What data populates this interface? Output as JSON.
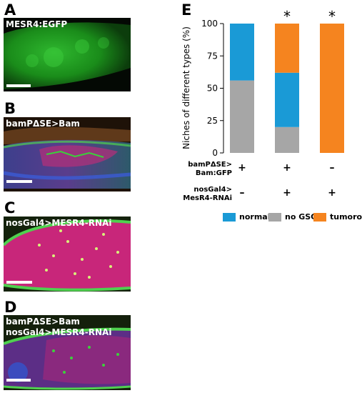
{
  "panels": [
    {
      "letter": "A",
      "caption": [
        "MESR4:EGFP"
      ]
    },
    {
      "letter": "B",
      "caption": [
        "bamPΔSE>Bam"
      ]
    },
    {
      "letter": "C",
      "caption": [
        "nosGal4>MESR4-RNAi"
      ]
    },
    {
      "letter": "D",
      "caption": [
        "bamPΔSE>Bam",
        "nosGal4>MESR4-RNAi"
      ]
    },
    {
      "letter": "E",
      "caption": []
    }
  ],
  "chart_data": {
    "type": "bar",
    "stacked": true,
    "ylabel": "Niches of different types (%)",
    "ylim": [
      0,
      100
    ],
    "yticks": [
      "0",
      "25",
      "50",
      "75",
      "100"
    ],
    "significance": [
      "",
      "*",
      "*"
    ],
    "series": [
      {
        "name": "no GSC",
        "color": "#a6a6a6",
        "values": [
          56,
          20,
          0
        ]
      },
      {
        "name": "normal",
        "color": "#1a9ad6",
        "values": [
          44,
          42,
          0
        ]
      },
      {
        "name": "tumorous",
        "color": "#f5841f",
        "values": [
          0,
          38,
          100
        ]
      }
    ],
    "legend_order": [
      "normal",
      "no GSC",
      "tumorous"
    ],
    "legend_position": "bottom",
    "genotype_rows": [
      {
        "label": [
          "bamPΔSE>",
          "Bam:GFP"
        ],
        "values": [
          "+",
          "+",
          "–"
        ]
      },
      {
        "label": [
          "nosGal4>",
          "MesR4-RNAi"
        ],
        "values": [
          "–",
          "+",
          "+"
        ]
      }
    ]
  }
}
